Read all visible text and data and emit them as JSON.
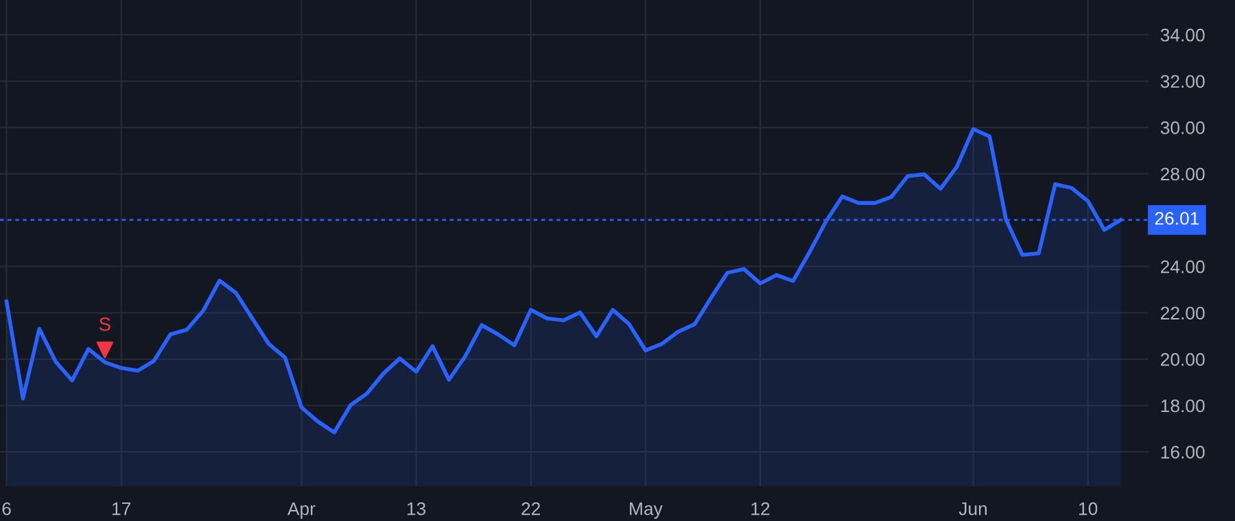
{
  "chart_data": {
    "type": "area",
    "categories": [
      "6",
      null,
      null,
      null,
      null,
      null,
      null,
      "17",
      null,
      null,
      null,
      null,
      null,
      null,
      null,
      null,
      null,
      null,
      "Apr",
      null,
      null,
      null,
      null,
      null,
      null,
      "13",
      null,
      null,
      null,
      null,
      null,
      null,
      "22",
      null,
      null,
      null,
      null,
      null,
      null,
      "May",
      null,
      null,
      null,
      null,
      null,
      null,
      "12",
      null,
      null,
      null,
      null,
      null,
      null,
      null,
      null,
      null,
      null,
      null,
      null,
      "Jun",
      null,
      null,
      null,
      null,
      null,
      null,
      "10",
      null,
      null
    ],
    "series": [
      {
        "color": "#2962ff",
        "values": [
          22.49,
          18.3,
          21.31,
          19.89,
          19.08,
          20.44,
          19.87,
          19.62,
          19.5,
          19.93,
          21.07,
          21.27,
          22.09,
          23.39,
          22.86,
          21.76,
          20.66,
          20.07,
          17.92,
          17.31,
          16.84,
          18.02,
          18.52,
          19.38,
          20.03,
          19.46,
          20.56,
          19.11,
          20.13,
          21.47,
          21.07,
          20.6,
          22.13,
          21.76,
          21.68,
          22.02,
          20.99,
          22.13,
          21.51,
          20.38,
          20.66,
          21.19,
          21.51,
          22.65,
          23.73,
          23.89,
          23.27,
          23.63,
          23.37,
          24.61,
          25.93,
          27.02,
          26.74,
          26.74,
          27.0,
          27.9,
          27.98,
          27.35,
          28.31,
          29.93,
          29.61,
          26.03,
          24.5,
          24.57,
          27.55,
          27.39,
          26.82,
          25.58,
          26.01
        ]
      },
      {
        "type": "scatter",
        "color": "#f23645",
        "marker": "triangle",
        "values": [
          null,
          null,
          null,
          null,
          null,
          null,
          20.4,
          null,
          null,
          null,
          null,
          null,
          null,
          null,
          null,
          null,
          null,
          null,
          null,
          null,
          null,
          null,
          null,
          null,
          null,
          null,
          null,
          null,
          null,
          null,
          null,
          null,
          null,
          null,
          null,
          null,
          null,
          null,
          null,
          null,
          null,
          null,
          null,
          null,
          null,
          null,
          null,
          null,
          null,
          null,
          null,
          null,
          null,
          null,
          null,
          null,
          null,
          null,
          null,
          null,
          null,
          null,
          null,
          null,
          null,
          null,
          null,
          null,
          null
        ]
      }
    ],
    "annotations": [
      "S"
    ],
    "ylim": [
      14.5,
      35.5
    ],
    "yticks": [
      {
        "value": 16,
        "label": "16.00"
      },
      {
        "value": 18,
        "label": "18.00"
      },
      {
        "value": 20,
        "label": "20.00"
      },
      {
        "value": 22,
        "label": "22.00"
      },
      {
        "value": 24,
        "label": "24.00"
      },
      {
        "value": 28,
        "label": "28.00"
      },
      {
        "value": 30,
        "label": "30.00"
      },
      {
        "value": 32,
        "label": "32.00"
      },
      {
        "value": 34,
        "label": "34.00"
      }
    ],
    "ref_lines": [
      {
        "axis": "y",
        "value": 26.01,
        "label": "26.01",
        "color": "#2962ff",
        "line_style": "dashed"
      }
    ],
    "grid": true,
    "legend": false
  }
}
